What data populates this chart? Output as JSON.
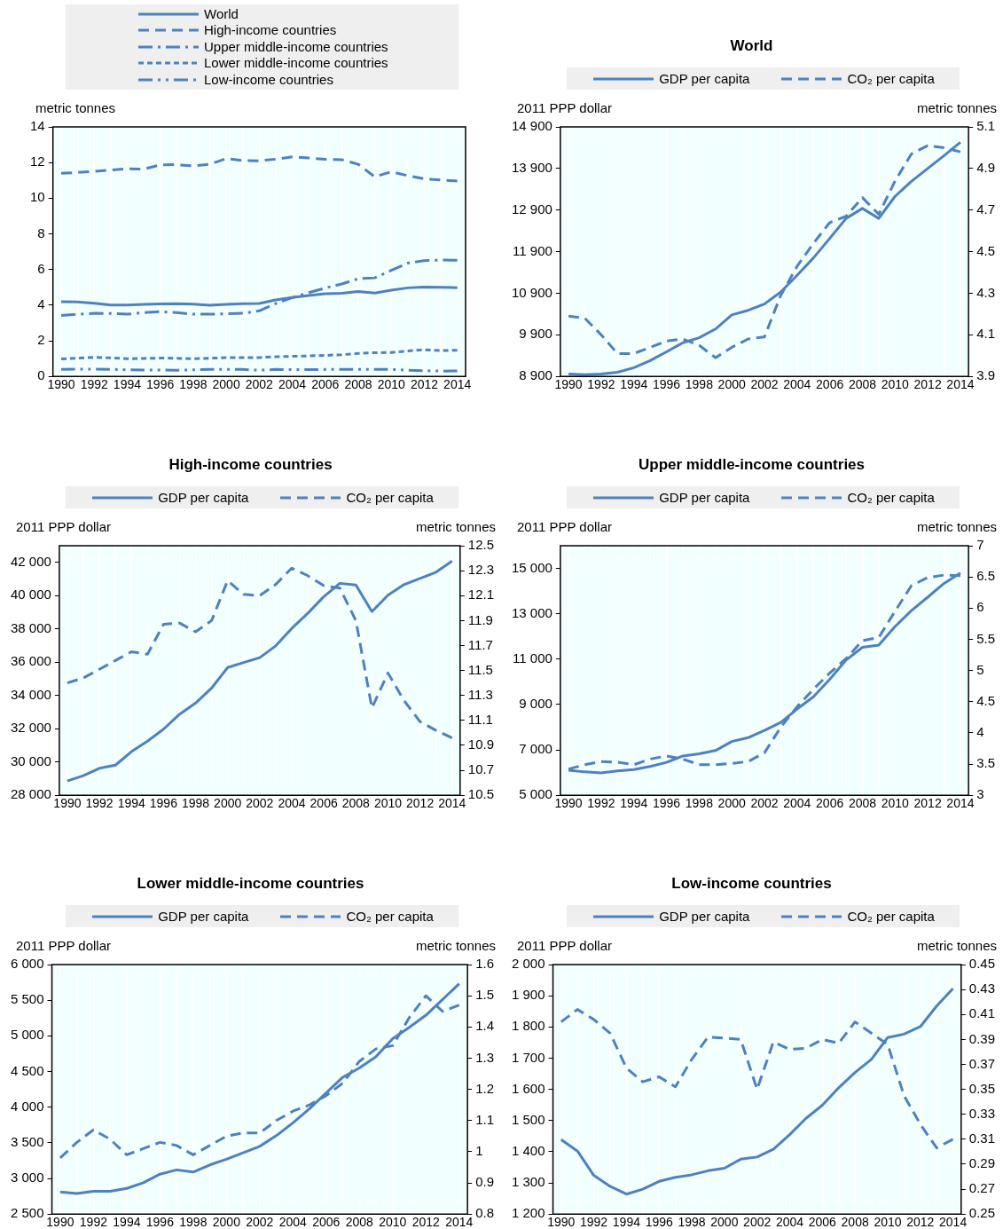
{
  "chart_data": [
    {
      "type": "line",
      "legend": "top",
      "grid": "x",
      "ylabel": "metric tonnes",
      "ylim": [
        0,
        14
      ],
      "yticks": [
        0,
        2,
        4,
        6,
        8,
        10,
        12,
        14
      ],
      "categories": [
        "1990",
        null,
        "1992",
        null,
        "1994",
        null,
        "1996",
        null,
        "1998",
        null,
        "2000",
        null,
        "2002",
        null,
        "2004",
        null,
        "2006",
        null,
        "2008",
        null,
        "2010",
        null,
        "2012",
        null,
        "2014"
      ],
      "series": [
        {
          "name": "World",
          "color": "#4f81bd",
          "line_style": "solid",
          "values": [
            4.19,
            4.18,
            4.1,
            4.01,
            4.01,
            4.04,
            4.07,
            4.08,
            4.05,
            3.99,
            4.04,
            4.08,
            4.09,
            4.29,
            4.43,
            4.54,
            4.64,
            4.67,
            4.76,
            4.68,
            4.84,
            4.97,
            5.01,
            5.0,
            4.98
          ]
        },
        {
          "name": "High-income countries",
          "color": "#4f81bd",
          "line_style": "dashed",
          "values": [
            11.4,
            11.44,
            11.51,
            11.58,
            11.65,
            11.63,
            11.87,
            11.88,
            11.81,
            11.9,
            12.22,
            12.11,
            12.1,
            12.19,
            12.32,
            12.26,
            12.18,
            12.16,
            11.9,
            11.2,
            11.48,
            11.26,
            11.09,
            11.02,
            10.96
          ]
        },
        {
          "name": "Upper middle-income countries",
          "color": "#4f81bd",
          "line_style": "dashdot",
          "values": [
            3.42,
            3.49,
            3.54,
            3.53,
            3.49,
            3.58,
            3.63,
            3.58,
            3.49,
            3.49,
            3.51,
            3.54,
            3.68,
            4.09,
            4.42,
            4.7,
            4.96,
            5.19,
            5.48,
            5.53,
            5.95,
            6.36,
            6.49,
            6.53,
            6.52
          ]
        },
        {
          "name": "Lower middle-income countries",
          "color": "#4f81bd",
          "line_style": "dotted",
          "values": [
            0.98,
            1.03,
            1.07,
            1.04,
            0.99,
            1.01,
            1.03,
            1.02,
            0.99,
            1.02,
            1.05,
            1.06,
            1.06,
            1.1,
            1.13,
            1.15,
            1.18,
            1.22,
            1.29,
            1.33,
            1.34,
            1.43,
            1.5,
            1.45,
            1.47
          ]
        },
        {
          "name": "Low-income countries",
          "color": "#4f81bd",
          "line_style": "dashdotdot",
          "values": [
            0.4,
            0.41,
            0.41,
            0.4,
            0.37,
            0.36,
            0.36,
            0.35,
            0.37,
            0.39,
            0.39,
            0.39,
            0.35,
            0.39,
            0.38,
            0.38,
            0.39,
            0.39,
            0.4,
            0.4,
            0.39,
            0.35,
            0.32,
            0.3,
            0.31
          ]
        }
      ]
    },
    {
      "type": "line",
      "title": "World",
      "legend": "top",
      "grid": "x",
      "ylabel": "2011 PPP dollar",
      "y2label": "metric tonnes",
      "ylim": [
        8900,
        14900
      ],
      "yticks": [
        {
          "value": 8900,
          "label": "8 900"
        },
        {
          "value": 9900,
          "label": "9 900"
        },
        {
          "value": 10900,
          "label": "10 900"
        },
        {
          "value": 11900,
          "label": "11 900"
        },
        {
          "value": 12900,
          "label": "12 900"
        },
        {
          "value": 13900,
          "label": "13 900"
        },
        {
          "value": 14900,
          "label": "14 900"
        }
      ],
      "y2lim": [
        3.9,
        5.1
      ],
      "y2ticks": [
        3.9,
        4.1,
        4.3,
        4.5,
        4.7,
        4.9,
        5.1
      ],
      "categories": [
        "1990",
        null,
        "1992",
        null,
        "1994",
        null,
        "1996",
        null,
        "1998",
        null,
        "2000",
        null,
        "2002",
        null,
        "2004",
        null,
        "2006",
        null,
        "2008",
        null,
        "2010",
        null,
        "2012",
        null,
        "2014"
      ],
      "series": [
        {
          "name": "GDP per capita",
          "color": "#4f81bd",
          "line_style": "solid",
          "values": [
            8960,
            8940,
            8960,
            9000,
            9110,
            9280,
            9490,
            9710,
            9830,
            10040,
            10380,
            10490,
            10640,
            10930,
            11330,
            11750,
            12220,
            12700,
            12940,
            12700,
            13230,
            13590,
            13900,
            14210,
            14530
          ]
        },
        {
          "name": "CO₂ per capita",
          "color": "#4f81bd",
          "line_style": "dashed",
          "axis": "y2",
          "values": [
            4.19,
            4.18,
            4.1,
            4.01,
            4.01,
            4.04,
            4.07,
            4.08,
            4.05,
            3.99,
            4.04,
            4.08,
            4.09,
            4.29,
            4.43,
            4.54,
            4.64,
            4.67,
            4.76,
            4.68,
            4.84,
            4.97,
            5.01,
            5.0,
            4.98
          ]
        }
      ]
    },
    {
      "type": "line",
      "title": "High-income countries",
      "legend": "top",
      "grid": "x",
      "ylabel": "2011 PPP dollar",
      "y2label": "metric tonnes",
      "ylim": [
        28000,
        43000
      ],
      "yticks": [
        {
          "value": 28000,
          "label": "28 000"
        },
        {
          "value": 30000,
          "label": "30 000"
        },
        {
          "value": 32000,
          "label": "32 000"
        },
        {
          "value": 34000,
          "label": "34 000"
        },
        {
          "value": 36000,
          "label": "36 000"
        },
        {
          "value": 38000,
          "label": "38 000"
        },
        {
          "value": 40000,
          "label": "40 000"
        },
        {
          "value": 42000,
          "label": "42 000"
        }
      ],
      "y2lim": [
        10.5,
        12.5
      ],
      "y2ticks": [
        10.5,
        10.7,
        10.9,
        11.1,
        11.3,
        11.5,
        11.7,
        11.9,
        12.1,
        12.3,
        12.5
      ],
      "categories": [
        "1990",
        null,
        "1992",
        null,
        "1994",
        null,
        "1996",
        null,
        "1998",
        null,
        "2000",
        null,
        "2002",
        null,
        "2004",
        null,
        "2006",
        null,
        "2008",
        null,
        "2010",
        null,
        "2012",
        null,
        "2014"
      ],
      "series": [
        {
          "name": "GDP per capita",
          "color": "#4f81bd",
          "line_style": "solid",
          "values": [
            28860,
            29180,
            29620,
            29810,
            30620,
            31250,
            31970,
            32870,
            33540,
            34440,
            35680,
            35980,
            36270,
            36980,
            38030,
            38940,
            39940,
            40740,
            40640,
            39040,
            40030,
            40660,
            41030,
            41410,
            42080
          ]
        },
        {
          "name": "CO₂ per capita",
          "color": "#4f81bd",
          "line_style": "dashed",
          "axis": "y2",
          "values": [
            11.4,
            11.44,
            11.51,
            11.58,
            11.65,
            11.63,
            11.87,
            11.88,
            11.81,
            11.9,
            12.22,
            12.11,
            12.1,
            12.19,
            12.32,
            12.26,
            12.18,
            12.16,
            11.9,
            11.2,
            11.48,
            11.26,
            11.09,
            11.02,
            10.96
          ]
        }
      ]
    },
    {
      "type": "line",
      "title": "Upper middle-income countries",
      "legend": "top",
      "grid": "x",
      "ylabel": "2011 PPP dollar",
      "y2label": "metric tonnes",
      "ylim": [
        5000,
        16000
      ],
      "yticks": [
        {
          "value": 5000,
          "label": "5 000"
        },
        {
          "value": 7000,
          "label": "7 000"
        },
        {
          "value": 9000,
          "label": "9 000"
        },
        {
          "value": 11000,
          "label": "11 000"
        },
        {
          "value": 13000,
          "label": "13 000"
        },
        {
          "value": 15000,
          "label": "15 000"
        }
      ],
      "y2lim": [
        3,
        7
      ],
      "y2ticks": [
        3,
        3.5,
        4,
        4.5,
        5,
        5.5,
        6,
        6.5,
        7
      ],
      "categories": [
        "1990",
        null,
        "1992",
        null,
        "1994",
        null,
        "1996",
        null,
        "1998",
        null,
        "2000",
        null,
        "2002",
        null,
        "2004",
        null,
        "2006",
        null,
        "2008",
        null,
        "2010",
        null,
        "2012",
        null,
        "2014"
      ],
      "series": [
        {
          "name": "GDP per capita",
          "color": "#4f81bd",
          "line_style": "solid",
          "values": [
            6100,
            6030,
            5990,
            6070,
            6130,
            6270,
            6450,
            6730,
            6830,
            6970,
            7370,
            7540,
            7860,
            8210,
            8800,
            9340,
            10110,
            10960,
            11520,
            11620,
            12440,
            13140,
            13730,
            14340,
            14800
          ]
        },
        {
          "name": "CO₂ per capita",
          "color": "#4f81bd",
          "line_style": "dashed",
          "axis": "y2",
          "values": [
            3.42,
            3.49,
            3.54,
            3.53,
            3.49,
            3.58,
            3.63,
            3.58,
            3.49,
            3.49,
            3.51,
            3.54,
            3.68,
            4.09,
            4.42,
            4.7,
            4.96,
            5.19,
            5.48,
            5.53,
            5.95,
            6.36,
            6.49,
            6.53,
            6.52
          ]
        }
      ]
    },
    {
      "type": "line",
      "title": "Lower middle-income countries",
      "legend": "top",
      "grid": "x",
      "ylabel": "2011 PPP dollar",
      "y2label": "metric tonnes",
      "ylim": [
        2500,
        6000
      ],
      "yticks": [
        {
          "value": 2500,
          "label": "2 500"
        },
        {
          "value": 3000,
          "label": "3 000"
        },
        {
          "value": 3500,
          "label": "3 500"
        },
        {
          "value": 4000,
          "label": "4 000"
        },
        {
          "value": 4500,
          "label": "4 500"
        },
        {
          "value": 5000,
          "label": "5 000"
        },
        {
          "value": 5500,
          "label": "5 500"
        },
        {
          "value": 6000,
          "label": "6 000"
        }
      ],
      "y2lim": [
        0.8,
        1.6
      ],
      "y2ticks": [
        0.8,
        0.9,
        1,
        1.1,
        1.2,
        1.3,
        1.4,
        1.5,
        1.6
      ],
      "categories": [
        "1990",
        null,
        "1992",
        null,
        "1994",
        null,
        "1996",
        null,
        "1998",
        null,
        "2000",
        null,
        "2002",
        null,
        "2004",
        null,
        "2006",
        null,
        "2008",
        null,
        "2010",
        null,
        "2012",
        null,
        "2014"
      ],
      "series": [
        {
          "name": "GDP per capita",
          "color": "#4f81bd",
          "line_style": "solid",
          "values": [
            2810,
            2790,
            2820,
            2820,
            2860,
            2940,
            3060,
            3120,
            3090,
            3190,
            3270,
            3360,
            3450,
            3600,
            3780,
            3980,
            4200,
            4420,
            4550,
            4710,
            4960,
            5120,
            5290,
            5510,
            5730
          ]
        },
        {
          "name": "CO₂ per capita",
          "color": "#4f81bd",
          "line_style": "dashed",
          "axis": "y2",
          "values": [
            0.98,
            1.03,
            1.07,
            1.04,
            0.99,
            1.01,
            1.03,
            1.02,
            0.99,
            1.02,
            1.05,
            1.06,
            1.06,
            1.1,
            1.13,
            1.15,
            1.18,
            1.22,
            1.29,
            1.33,
            1.34,
            1.43,
            1.5,
            1.45,
            1.47
          ]
        }
      ]
    },
    {
      "type": "line",
      "title": "Low-income countries",
      "legend": "top",
      "grid": "x",
      "ylabel": "2011 PPP dollar",
      "y2label": "metric tonnes",
      "ylim": [
        1200,
        2000
      ],
      "yticks": [
        {
          "value": 1200,
          "label": "1 200"
        },
        {
          "value": 1300,
          "label": "1 300"
        },
        {
          "value": 1400,
          "label": "1 400"
        },
        {
          "value": 1500,
          "label": "1 500"
        },
        {
          "value": 1600,
          "label": "1 600"
        },
        {
          "value": 1700,
          "label": "1 700"
        },
        {
          "value": 1800,
          "label": "1 800"
        },
        {
          "value": 1900,
          "label": "1 900"
        },
        {
          "value": 2000,
          "label": "2 000"
        }
      ],
      "y2lim": [
        0.25,
        0.45
      ],
      "y2ticks": [
        0.25,
        0.27,
        0.29,
        0.31,
        0.33,
        0.35,
        0.37,
        0.39,
        0.41,
        0.43,
        0.45
      ],
      "categories": [
        "1990",
        null,
        "1992",
        null,
        "1994",
        null,
        "1996",
        null,
        "1998",
        null,
        "2000",
        null,
        "2002",
        null,
        "2004",
        null,
        "2006",
        null,
        "2008",
        null,
        "2010",
        null,
        "2012",
        null,
        "2014"
      ],
      "series": [
        {
          "name": "GDP per capita",
          "color": "#4f81bd",
          "line_style": "solid",
          "values": [
            1439,
            1402,
            1324,
            1289,
            1264,
            1280,
            1305,
            1318,
            1326,
            1339,
            1347,
            1376,
            1383,
            1408,
            1455,
            1507,
            1549,
            1605,
            1654,
            1696,
            1766,
            1777,
            1801,
            1867,
            1923
          ]
        },
        {
          "name": "CO₂ per capita",
          "color": "#4f81bd",
          "line_style": "dashed",
          "axis": "y2",
          "values": [
            0.404,
            0.414,
            0.406,
            0.395,
            0.367,
            0.356,
            0.36,
            0.352,
            0.374,
            0.392,
            0.391,
            0.39,
            0.35,
            0.388,
            0.382,
            0.383,
            0.39,
            0.387,
            0.404,
            0.395,
            0.386,
            0.345,
            0.322,
            0.303,
            0.31
          ]
        }
      ]
    }
  ]
}
